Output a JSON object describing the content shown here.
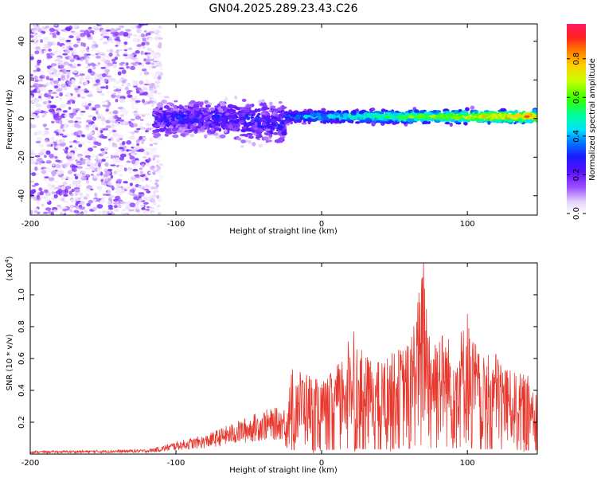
{
  "title": "GN04.2025.289.23.43.C26",
  "chart_data": [
    {
      "type": "heatmap",
      "name": "spectrogram",
      "xlabel": "Height of straight line (km)",
      "ylabel": "Frequency (Hz)",
      "xlim": [
        -200,
        148
      ],
      "ylim": [
        -50,
        49
      ],
      "xticks": [
        -200,
        -100,
        0,
        100
      ],
      "yticks": [
        -40,
        -20,
        0,
        20,
        40
      ],
      "ridge": {
        "description": "dominant frequency ridge near 0 Hz",
        "segments": [
          {
            "x": [
              -115,
              -25
            ],
            "center_hz": 0,
            "half_width_hz": 8,
            "amplitude": [
              0.15,
              0.35
            ]
          },
          {
            "x": [
              -25,
              148
            ],
            "center_hz": 1,
            "half_width_hz": 3,
            "amplitude": [
              0.3,
              0.95
            ]
          }
        ],
        "noise_region_x": [
          -200,
          -118
        ],
        "noise_amplitude": [
          0.02,
          0.2
        ]
      },
      "colorbar": {
        "label": "Normalized spectral amplitude",
        "ticks": [
          "0.0",
          "0.2",
          "0.4",
          "0.6",
          "0.8"
        ],
        "range": [
          0,
          0.98
        ]
      }
    },
    {
      "type": "line",
      "name": "snr",
      "xlabel": "Height of straight line (km)",
      "ylabel": "SNR (10 * v/v)",
      "ylabel_scale": "(x10",
      "ylabel_scale_exp": "4",
      "xlim": [
        -200,
        148
      ],
      "ylim": [
        0,
        1.2
      ],
      "xticks": [
        -200,
        -100,
        0,
        100
      ],
      "yticks": [
        "0.2",
        "0.4",
        "0.6",
        "0.8",
        "1.0"
      ],
      "ytick_values": [
        0.2,
        0.4,
        0.6,
        0.8,
        1.0
      ],
      "series": [
        {
          "name": "SNR",
          "color": "#e8382e",
          "envelope_x": [
            -200,
            -150,
            -120,
            -110,
            -100,
            -80,
            -60,
            -40,
            -25,
            -20,
            -10,
            0,
            10,
            20,
            30,
            40,
            50,
            60,
            70,
            75,
            80,
            90,
            100,
            110,
            120,
            130,
            140,
            148
          ],
          "envelope_y": [
            0.02,
            0.025,
            0.03,
            0.05,
            0.08,
            0.12,
            0.2,
            0.28,
            0.3,
            0.55,
            0.52,
            0.45,
            0.55,
            0.75,
            0.62,
            0.58,
            0.65,
            0.7,
            1.2,
            0.75,
            0.8,
            0.72,
            0.85,
            0.6,
            0.65,
            0.52,
            0.5,
            0.48
          ],
          "peaks": [
            [
              22,
              0.77
            ],
            [
              70,
              1.2
            ],
            [
              100,
              0.88
            ]
          ]
        }
      ]
    }
  ]
}
